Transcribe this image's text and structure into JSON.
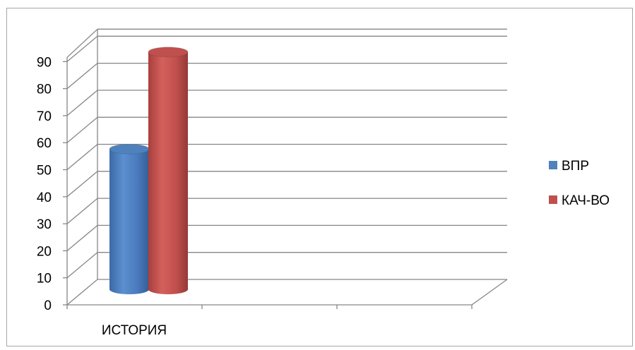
{
  "chart_data": {
    "type": "bar",
    "title": "",
    "xlabel": "",
    "ylabel": "",
    "categories": [
      "ИСТОРИЯ"
    ],
    "series": [
      {
        "name": "ВПР",
        "values": [
          52
        ],
        "color": "#4f81bd"
      },
      {
        "name": "КАЧ-ВО",
        "values": [
          88
        ],
        "color": "#c0504d"
      }
    ],
    "ylim": [
      0,
      90
    ],
    "yticks": [
      0,
      10,
      20,
      30,
      40,
      50,
      60,
      70,
      80,
      90
    ],
    "grid": true,
    "legend_position": "right",
    "style": "3d-cylinder"
  }
}
